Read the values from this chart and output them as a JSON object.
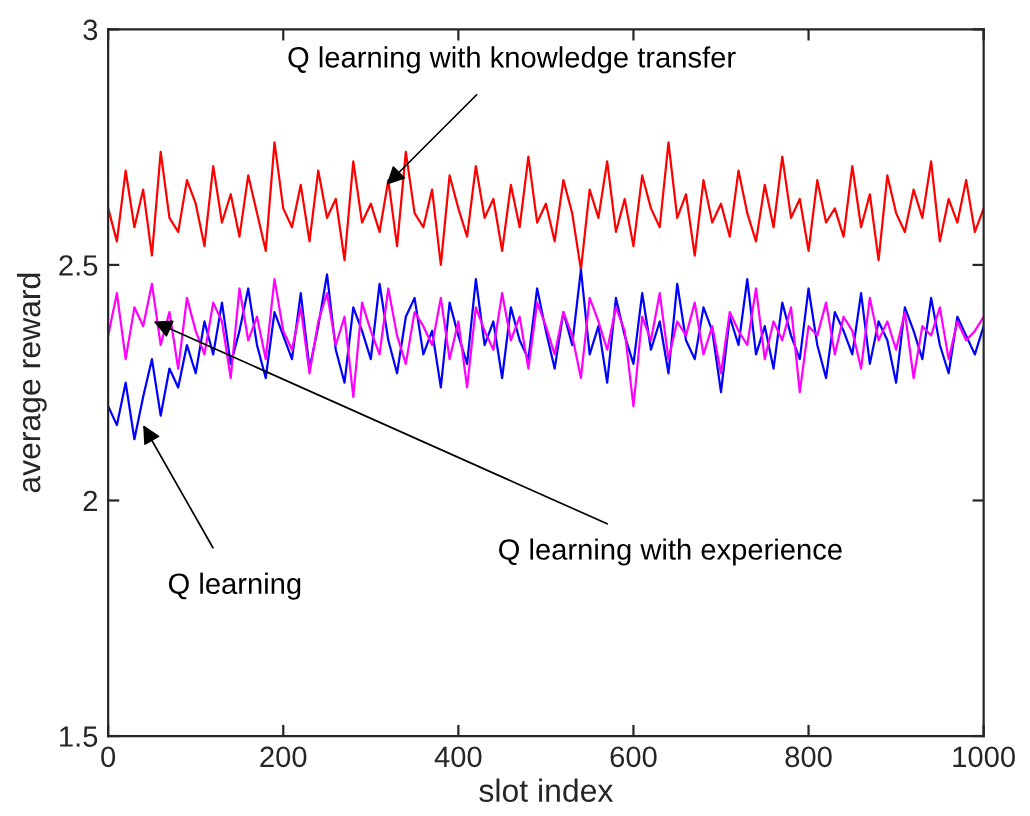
{
  "chart_data": {
    "type": "line",
    "xlabel": "slot index",
    "ylabel": "average reward",
    "xlim": [
      0,
      1000
    ],
    "xticks": [
      0,
      200,
      400,
      600,
      800,
      1000
    ],
    "ylim": [
      1.5,
      3
    ],
    "yticks": [
      1.5,
      2,
      2.5,
      3
    ],
    "grid": false,
    "legend": false,
    "x": [
      0,
      10,
      20,
      30,
      40,
      50,
      60,
      70,
      80,
      90,
      100,
      110,
      120,
      130,
      140,
      150,
      160,
      170,
      180,
      190,
      200,
      210,
      220,
      230,
      240,
      250,
      260,
      270,
      280,
      290,
      300,
      310,
      320,
      330,
      340,
      350,
      360,
      370,
      380,
      390,
      400,
      410,
      420,
      430,
      440,
      450,
      460,
      470,
      480,
      490,
      500,
      510,
      520,
      530,
      540,
      550,
      560,
      570,
      580,
      590,
      600,
      610,
      620,
      630,
      640,
      650,
      660,
      670,
      680,
      690,
      700,
      710,
      720,
      730,
      740,
      750,
      760,
      770,
      780,
      790,
      800,
      810,
      820,
      830,
      840,
      850,
      860,
      870,
      880,
      890,
      900,
      910,
      920,
      930,
      940,
      950,
      960,
      970,
      980,
      990,
      1000
    ],
    "annotations": [
      {
        "text": "Q learning with knowledge transfer",
        "x": 318,
        "y": 2.67
      },
      {
        "text": "Q learning with experience",
        "x": 52,
        "y": 2.38
      },
      {
        "text": "Q learning",
        "x": 40,
        "y": 2.16
      }
    ],
    "series": [
      {
        "color": "#ff0000",
        "values": [
          2.62,
          2.55,
          2.7,
          2.58,
          2.66,
          2.52,
          2.74,
          2.6,
          2.57,
          2.68,
          2.63,
          2.54,
          2.71,
          2.59,
          2.65,
          2.56,
          2.69,
          2.61,
          2.53,
          2.76,
          2.62,
          2.58,
          2.67,
          2.55,
          2.7,
          2.6,
          2.64,
          2.51,
          2.72,
          2.59,
          2.63,
          2.57,
          2.68,
          2.54,
          2.74,
          2.61,
          2.58,
          2.66,
          2.5,
          2.69,
          2.62,
          2.56,
          2.71,
          2.6,
          2.64,
          2.53,
          2.67,
          2.58,
          2.73,
          2.59,
          2.63,
          2.55,
          2.68,
          2.61,
          2.49,
          2.66,
          2.6,
          2.72,
          2.57,
          2.64,
          2.54,
          2.69,
          2.62,
          2.58,
          2.76,
          2.6,
          2.65,
          2.52,
          2.68,
          2.59,
          2.63,
          2.56,
          2.7,
          2.61,
          2.55,
          2.67,
          2.58,
          2.73,
          2.6,
          2.64,
          2.53,
          2.68,
          2.59,
          2.62,
          2.56,
          2.71,
          2.58,
          2.65,
          2.51,
          2.69,
          2.61,
          2.57,
          2.66,
          2.6,
          2.72,
          2.55,
          2.64,
          2.59,
          2.68,
          2.57,
          2.62
        ]
      },
      {
        "color": "#0000ff",
        "values": [
          2.2,
          2.16,
          2.25,
          2.13,
          2.22,
          2.3,
          2.18,
          2.28,
          2.24,
          2.33,
          2.27,
          2.38,
          2.31,
          2.42,
          2.29,
          2.36,
          2.45,
          2.33,
          2.26,
          2.4,
          2.35,
          2.3,
          2.44,
          2.28,
          2.37,
          2.48,
          2.32,
          2.25,
          2.41,
          2.36,
          2.3,
          2.46,
          2.34,
          2.27,
          2.39,
          2.43,
          2.31,
          2.36,
          2.24,
          2.42,
          2.35,
          2.29,
          2.47,
          2.33,
          2.38,
          2.26,
          2.41,
          2.34,
          2.3,
          2.45,
          2.36,
          2.28,
          2.4,
          2.33,
          2.49,
          2.31,
          2.37,
          2.25,
          2.43,
          2.35,
          2.29,
          2.44,
          2.32,
          2.38,
          2.27,
          2.46,
          2.34,
          2.3,
          2.41,
          2.36,
          2.23,
          2.39,
          2.33,
          2.47,
          2.31,
          2.37,
          2.28,
          2.42,
          2.35,
          2.3,
          2.45,
          2.33,
          2.26,
          2.4,
          2.36,
          2.31,
          2.44,
          2.29,
          2.38,
          2.34,
          2.25,
          2.41,
          2.36,
          2.3,
          2.43,
          2.33,
          2.27,
          2.39,
          2.35,
          2.31,
          2.37
        ]
      },
      {
        "color": "#ff00ff",
        "values": [
          2.35,
          2.44,
          2.3,
          2.41,
          2.37,
          2.46,
          2.33,
          2.4,
          2.28,
          2.43,
          2.36,
          2.31,
          2.42,
          2.38,
          2.26,
          2.45,
          2.34,
          2.39,
          2.3,
          2.47,
          2.36,
          2.32,
          2.41,
          2.27,
          2.38,
          2.44,
          2.33,
          2.39,
          2.22,
          2.42,
          2.36,
          2.31,
          2.45,
          2.35,
          2.29,
          2.4,
          2.37,
          2.33,
          2.43,
          2.3,
          2.38,
          2.24,
          2.41,
          2.36,
          2.32,
          2.44,
          2.34,
          2.39,
          2.28,
          2.42,
          2.37,
          2.31,
          2.4,
          2.35,
          2.26,
          2.43,
          2.38,
          2.32,
          2.41,
          2.36,
          2.2,
          2.39,
          2.34,
          2.44,
          2.3,
          2.38,
          2.35,
          2.42,
          2.31,
          2.37,
          2.27,
          2.4,
          2.36,
          2.33,
          2.45,
          2.3,
          2.38,
          2.34,
          2.41,
          2.23,
          2.37,
          2.35,
          2.42,
          2.31,
          2.39,
          2.36,
          2.28,
          2.43,
          2.34,
          2.38,
          2.32,
          2.4,
          2.26,
          2.37,
          2.35,
          2.41,
          2.3,
          2.38,
          2.34,
          2.36,
          2.39
        ]
      }
    ]
  }
}
